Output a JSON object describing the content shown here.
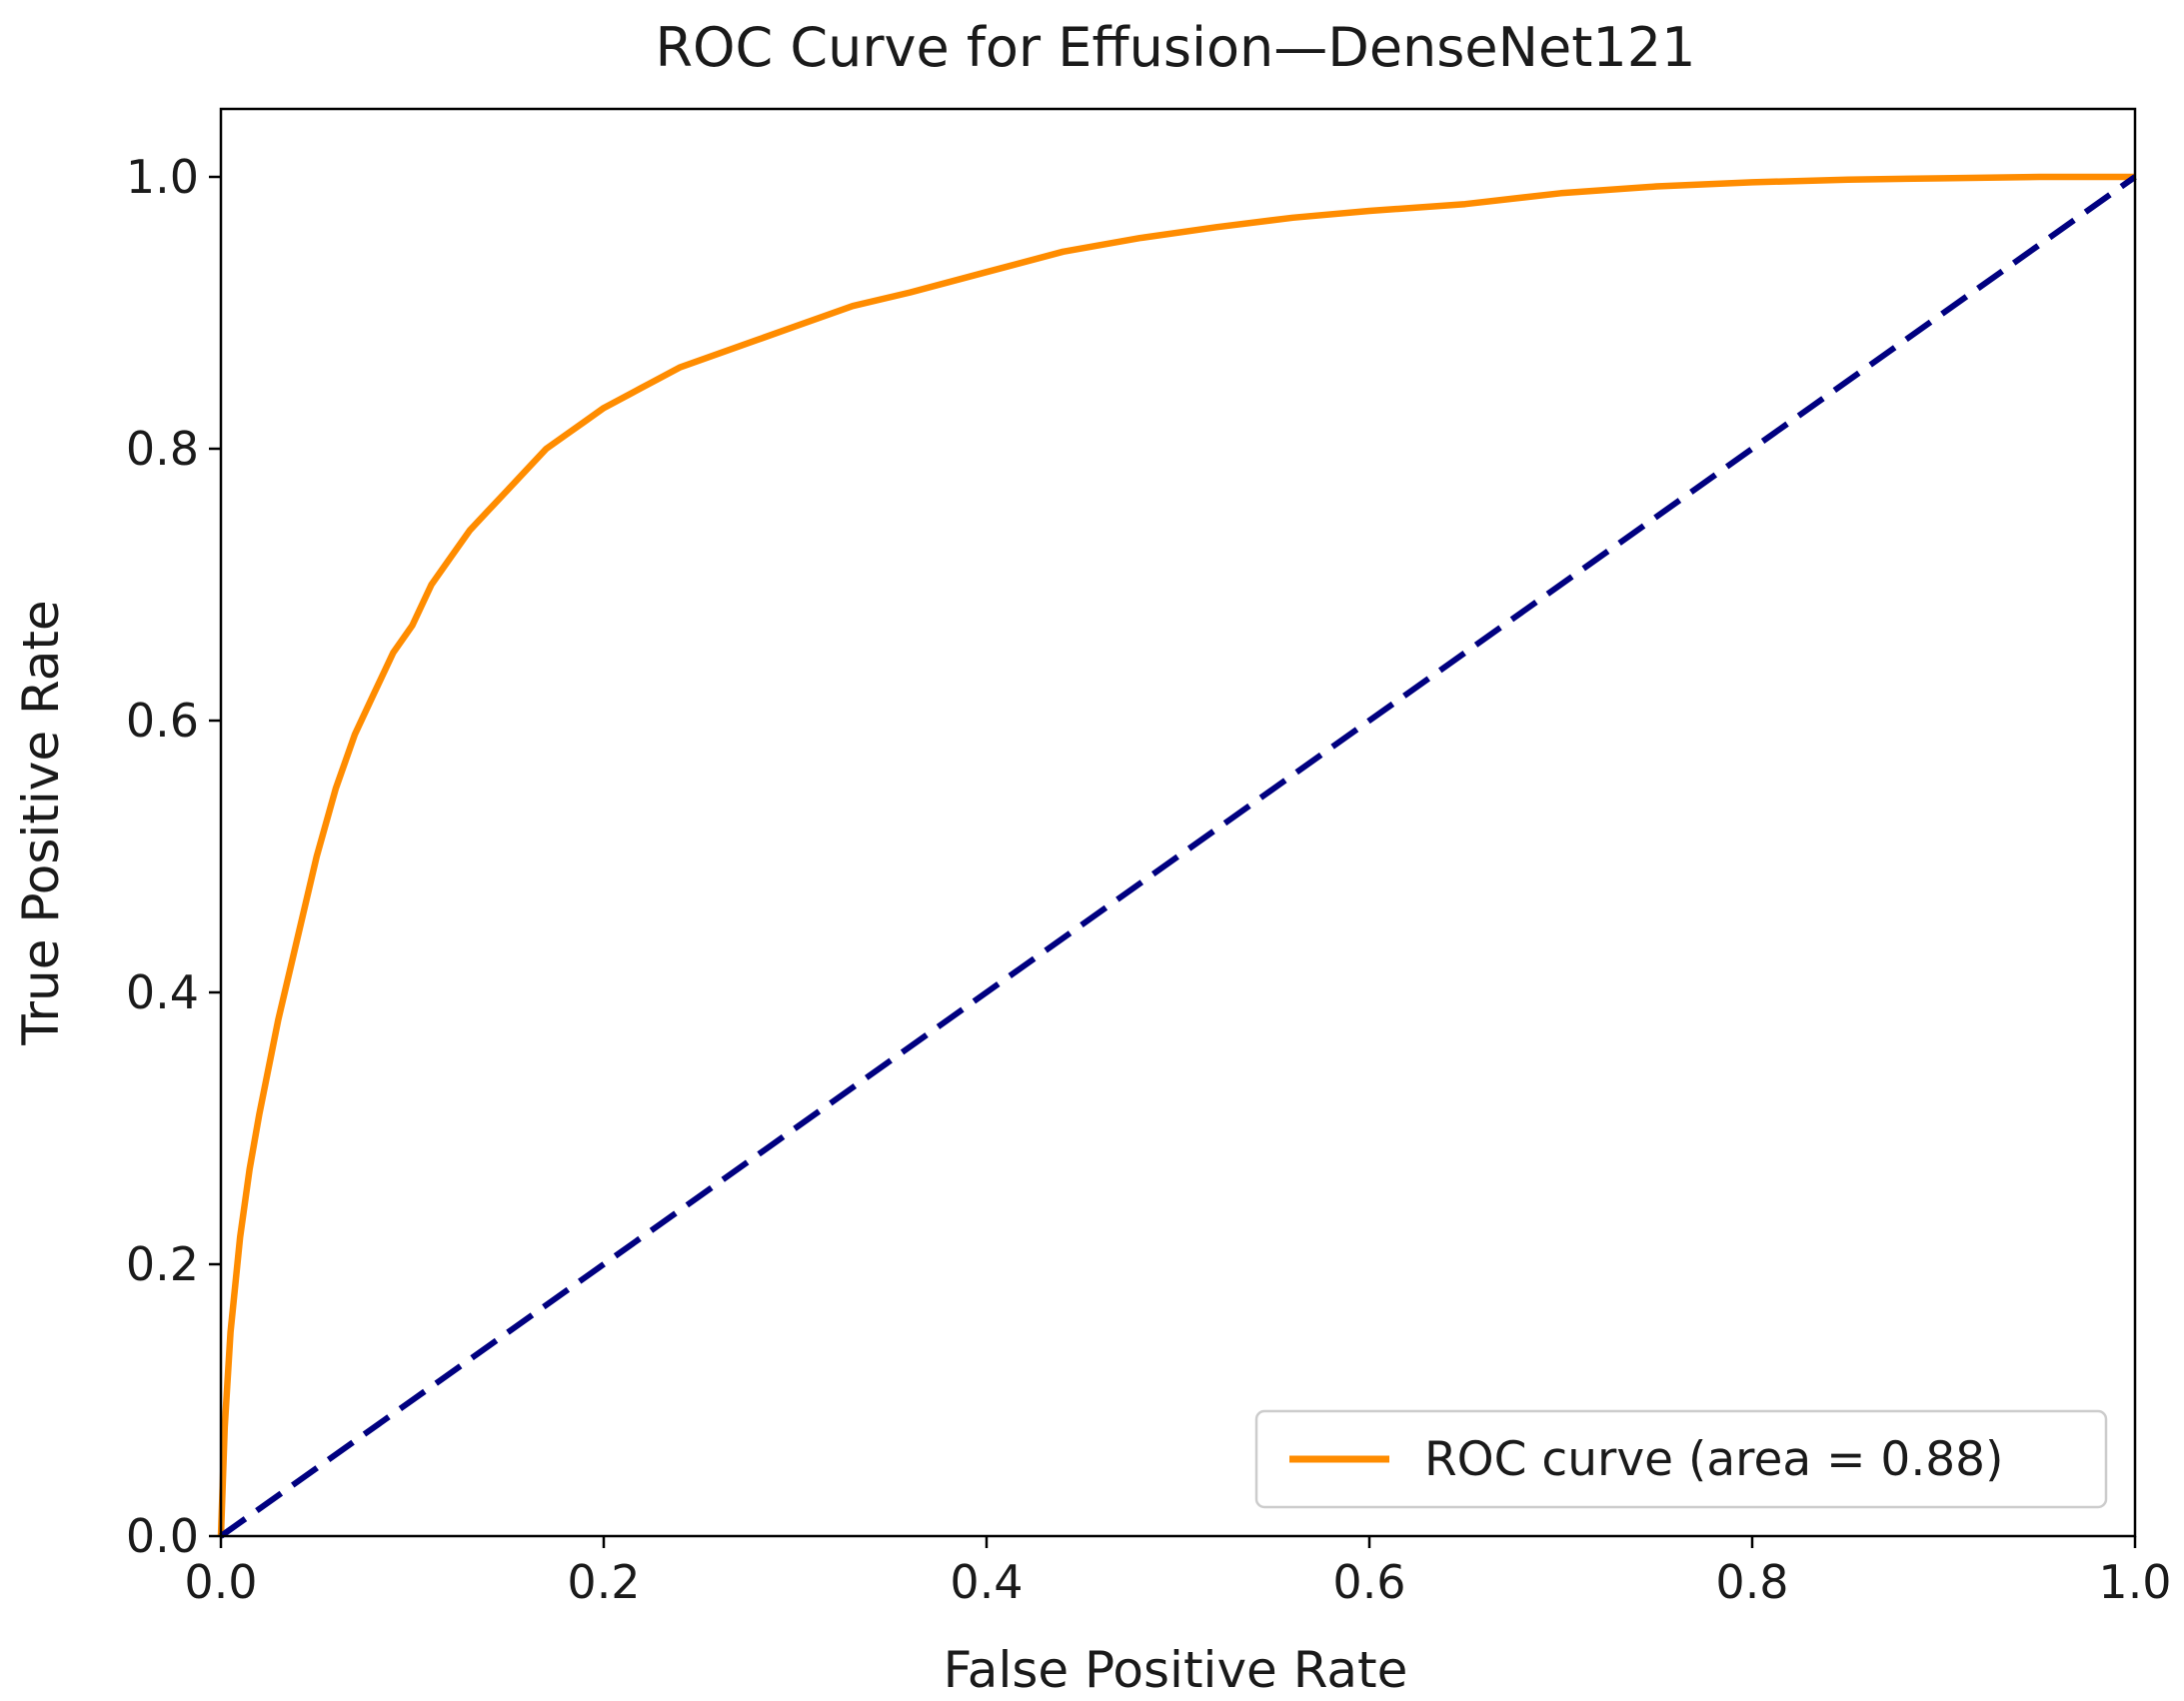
{
  "chart_data": {
    "type": "line",
    "title": "ROC Curve for Effusion—DenseNet121",
    "xlabel": "False Positive Rate",
    "ylabel": "True Positive Rate",
    "xlim": [
      0.0,
      1.0
    ],
    "ylim": [
      0.0,
      1.05
    ],
    "xticks": [
      "0.0",
      "0.2",
      "0.4",
      "0.6",
      "0.8",
      "1.0"
    ],
    "yticks": [
      "0.0",
      "0.2",
      "0.4",
      "0.6",
      "0.8",
      "1.0"
    ],
    "grid": false,
    "legend_position": "lower-right",
    "series": [
      {
        "name": "ROC curve (area = 0.88)",
        "color": "#ff8c00",
        "style": "solid",
        "x": [
          0.0,
          0.002,
          0.005,
          0.01,
          0.015,
          0.02,
          0.03,
          0.04,
          0.05,
          0.06,
          0.07,
          0.08,
          0.09,
          0.1,
          0.11,
          0.12,
          0.13,
          0.14,
          0.15,
          0.16,
          0.17,
          0.18,
          0.19,
          0.2,
          0.22,
          0.24,
          0.26,
          0.28,
          0.3,
          0.33,
          0.36,
          0.4,
          0.44,
          0.48,
          0.52,
          0.56,
          0.6,
          0.65,
          0.7,
          0.75,
          0.8,
          0.85,
          0.9,
          0.95,
          1.0
        ],
        "y": [
          0.0,
          0.08,
          0.15,
          0.22,
          0.27,
          0.31,
          0.38,
          0.44,
          0.5,
          0.55,
          0.59,
          0.62,
          0.65,
          0.67,
          0.7,
          0.72,
          0.74,
          0.755,
          0.77,
          0.785,
          0.8,
          0.81,
          0.82,
          0.83,
          0.845,
          0.86,
          0.87,
          0.88,
          0.89,
          0.905,
          0.915,
          0.93,
          0.945,
          0.955,
          0.963,
          0.97,
          0.975,
          0.98,
          0.988,
          0.993,
          0.996,
          0.998,
          0.999,
          1.0,
          1.0
        ]
      },
      {
        "name": "",
        "color": "#000080",
        "style": "dashed",
        "x": [
          0.0,
          1.0
        ],
        "y": [
          0.0,
          1.0
        ]
      }
    ]
  }
}
